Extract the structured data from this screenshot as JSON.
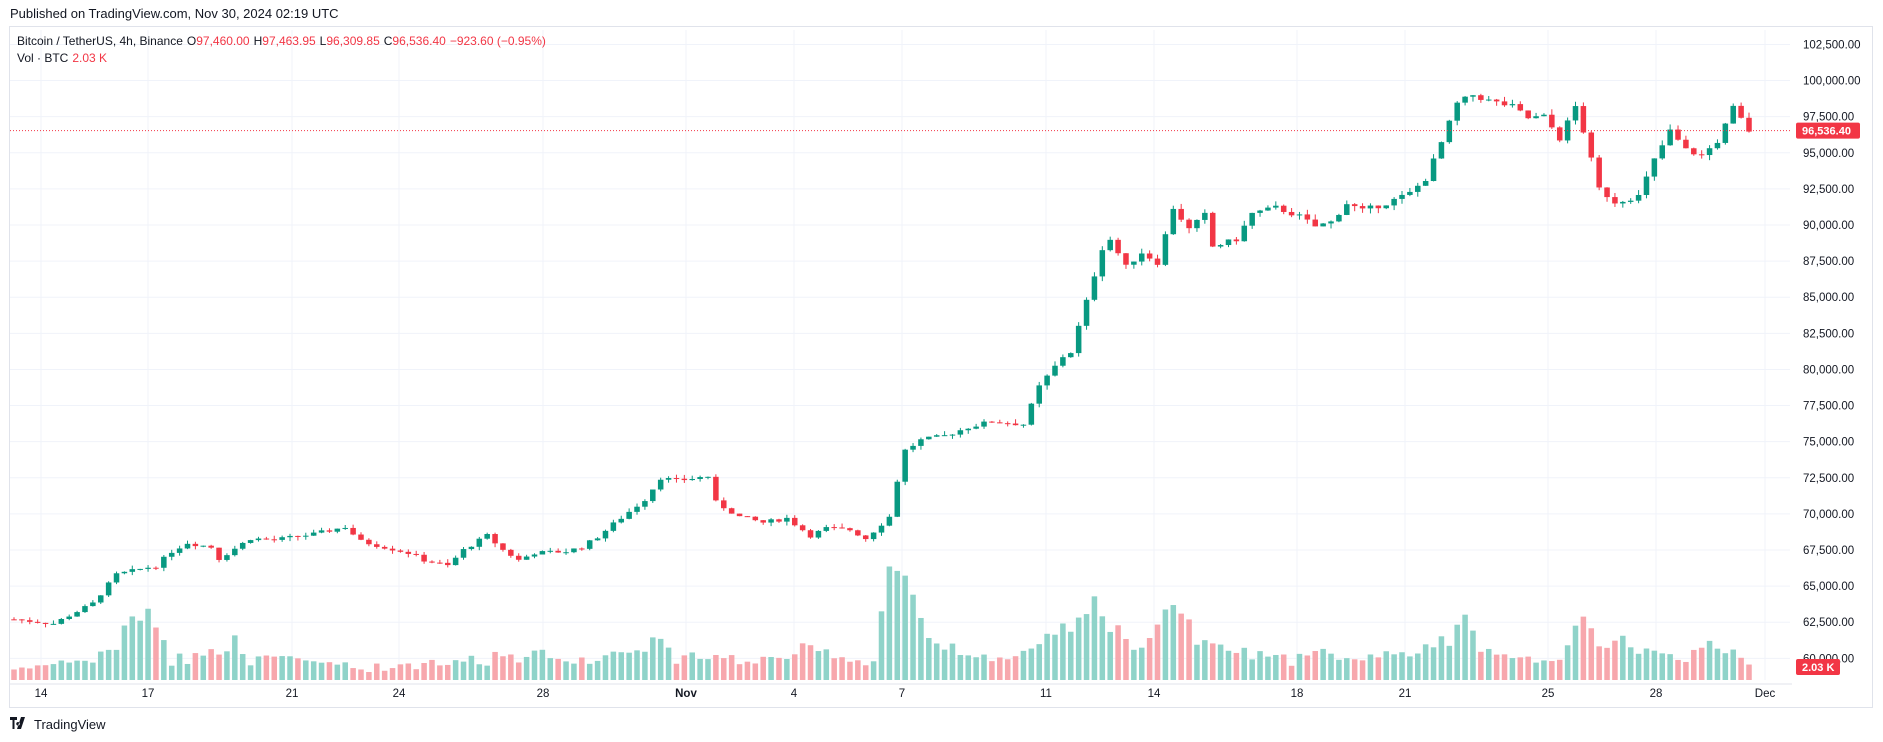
{
  "header": {
    "published": "Published on TradingView.com, Nov 30, 2024 02:19 UTC"
  },
  "legend": {
    "symbol": "Bitcoin / TetherUS, 4h, Binance",
    "o_label": "O",
    "o_value": "97,460.00",
    "h_label": "H",
    "h_value": "97,463.95",
    "l_label": "L",
    "l_value": "96,309.85",
    "c_label": "C",
    "c_value": "96,536.40",
    "change": "−923.60 (−0.95%)",
    "vol_label": "Vol · BTC",
    "vol_value": "2.03 K"
  },
  "price_badge": "96,536.40",
  "volume_badge": "2.03 K",
  "brand": {
    "name": "TradingView",
    "logo_icon": "tradingview-logo-icon"
  },
  "colors": {
    "up": "#089981",
    "down": "#f23645",
    "vol_up": "#8fd3c9",
    "vol_down": "#f7a7ad",
    "grid": "#f0f3fa"
  },
  "chart_data": {
    "type": "candlestick",
    "symbol": "Bitcoin / TetherUS",
    "interval": "4h",
    "exchange": "Binance",
    "ylim": [
      58500,
      103500
    ],
    "y_ticks": [
      "60,000.00",
      "62,500.00",
      "65,000.00",
      "67,500.00",
      "70,000.00",
      "72,500.00",
      "75,000.00",
      "77,500.00",
      "80,000.00",
      "82,500.00",
      "85,000.00",
      "87,500.00",
      "90,000.00",
      "92,500.00",
      "95,000.00",
      "97,500.00",
      "100,000.00",
      "102,500.00"
    ],
    "y_tick_values": [
      60000,
      62500,
      65000,
      67500,
      70000,
      72500,
      75000,
      77500,
      80000,
      82500,
      85000,
      87500,
      90000,
      92500,
      95000,
      97500,
      100000,
      102500
    ],
    "x_ticks": [
      "14",
      "17",
      "21",
      "24",
      "28",
      "Nov",
      "4",
      "7",
      "11",
      "14",
      "18",
      "21",
      "25",
      "28",
      "Dec"
    ],
    "last_price": 96536.4,
    "close_path": [
      [
        0,
        62700
      ],
      [
        5,
        62400
      ],
      [
        10,
        63800
      ],
      [
        13,
        65800
      ],
      [
        17,
        66300
      ],
      [
        18,
        66400
      ],
      [
        20,
        67400
      ],
      [
        22,
        68000
      ],
      [
        25,
        67700
      ],
      [
        26,
        66900
      ],
      [
        28,
        67600
      ],
      [
        30,
        68300
      ],
      [
        33,
        68200
      ],
      [
        38,
        68600
      ],
      [
        42,
        69100
      ],
      [
        44,
        68100
      ],
      [
        47,
        67700
      ],
      [
        50,
        67300
      ],
      [
        52,
        66800
      ],
      [
        55,
        66400
      ],
      [
        57,
        67500
      ],
      [
        60,
        68500
      ],
      [
        62,
        67500
      ],
      [
        64,
        66800
      ],
      [
        66,
        67300
      ],
      [
        70,
        67400
      ],
      [
        72,
        67700
      ],
      [
        74,
        68400
      ],
      [
        76,
        69300
      ],
      [
        80,
        71000
      ],
      [
        82,
        72500
      ],
      [
        84,
        72300
      ],
      [
        88,
        72600
      ],
      [
        89,
        70800
      ],
      [
        92,
        69800
      ],
      [
        95,
        69400
      ],
      [
        98,
        69700
      ],
      [
        101,
        68500
      ],
      [
        103,
        69000
      ],
      [
        106,
        68900
      ],
      [
        108,
        68300
      ],
      [
        111,
        69800
      ],
      [
        112,
        72300
      ],
      [
        113,
        74400
      ],
      [
        115,
        75100
      ],
      [
        118,
        75400
      ],
      [
        121,
        76000
      ],
      [
        124,
        76400
      ],
      [
        126,
        76300
      ],
      [
        128,
        76200
      ],
      [
        130,
        78800
      ],
      [
        133,
        80900
      ],
      [
        134,
        81200
      ],
      [
        136,
        84700
      ],
      [
        138,
        88400
      ],
      [
        139,
        89000
      ],
      [
        141,
        87100
      ],
      [
        143,
        88100
      ],
      [
        145,
        87400
      ],
      [
        147,
        91200
      ],
      [
        149,
        89700
      ],
      [
        151,
        90700
      ],
      [
        152,
        88500
      ],
      [
        155,
        89000
      ],
      [
        157,
        90800
      ],
      [
        160,
        91200
      ],
      [
        163,
        90600
      ],
      [
        165,
        89900
      ],
      [
        167,
        90200
      ],
      [
        169,
        91500
      ],
      [
        171,
        91000
      ],
      [
        174,
        91500
      ],
      [
        177,
        92200
      ],
      [
        179,
        93200
      ],
      [
        181,
        95700
      ],
      [
        183,
        98400
      ],
      [
        185,
        99000
      ],
      [
        187,
        98600
      ],
      [
        190,
        98200
      ],
      [
        192,
        97400
      ],
      [
        194,
        97500
      ],
      [
        196,
        96000
      ],
      [
        198,
        98200
      ],
      [
        199,
        96500
      ],
      [
        201,
        92500
      ],
      [
        203,
        91600
      ],
      [
        206,
        92000
      ],
      [
        208,
        94500
      ],
      [
        210,
        96500
      ],
      [
        212,
        95200
      ],
      [
        214,
        94800
      ],
      [
        216,
        95800
      ],
      [
        217,
        96900
      ],
      [
        218,
        98100
      ],
      [
        220,
        96536
      ]
    ],
    "volume_profile": [
      [
        0,
        1
      ],
      [
        10,
        2
      ],
      [
        13,
        4
      ],
      [
        17,
        9
      ],
      [
        20,
        2
      ],
      [
        28,
        4
      ],
      [
        30,
        2
      ],
      [
        38,
        2
      ],
      [
        44,
        1
      ],
      [
        60,
        2
      ],
      [
        62,
        3
      ],
      [
        70,
        2
      ],
      [
        78,
        3
      ],
      [
        82,
        5
      ],
      [
        84,
        2
      ],
      [
        88,
        3
      ],
      [
        90,
        2
      ],
      [
        98,
        2
      ],
      [
        100,
        3
      ],
      [
        109,
        2
      ],
      [
        112,
        16
      ],
      [
        113,
        11
      ],
      [
        116,
        4
      ],
      [
        120,
        3
      ],
      [
        126,
        2
      ],
      [
        130,
        4
      ],
      [
        134,
        6
      ],
      [
        137,
        9
      ],
      [
        139,
        6
      ],
      [
        141,
        4
      ],
      [
        144,
        5
      ],
      [
        147,
        12
      ],
      [
        150,
        4
      ],
      [
        156,
        3
      ],
      [
        162,
        2
      ],
      [
        166,
        3
      ],
      [
        170,
        2
      ],
      [
        178,
        3
      ],
      [
        184,
        6
      ],
      [
        186,
        3
      ],
      [
        192,
        2
      ],
      [
        196,
        3
      ],
      [
        199,
        6
      ],
      [
        204,
        4
      ],
      [
        208,
        3
      ],
      [
        212,
        2
      ],
      [
        216,
        4
      ],
      [
        218,
        3
      ],
      [
        220,
        2
      ]
    ]
  }
}
